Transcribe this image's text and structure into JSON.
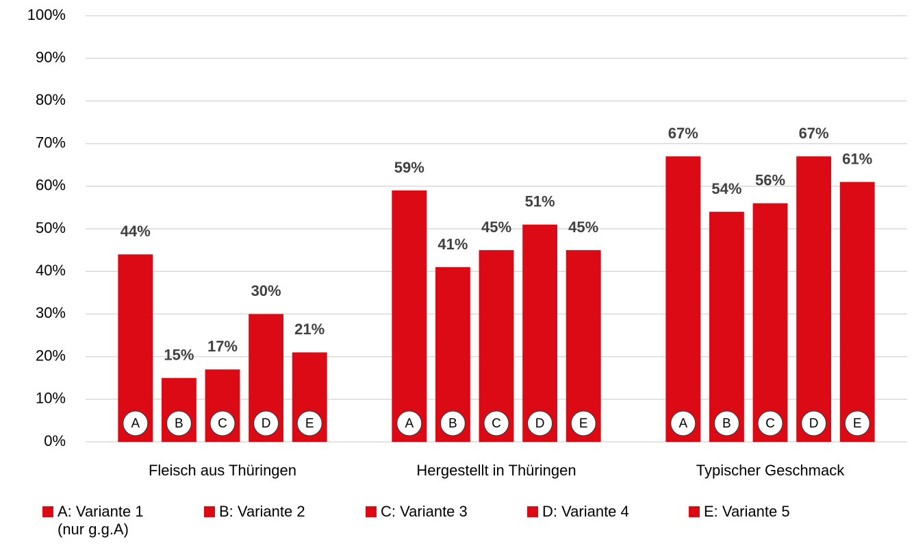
{
  "chart_data": {
    "type": "bar",
    "categories": [
      "Fleisch aus Thüringen",
      "Hergestellt in Thüringen",
      "Typischer Geschmack"
    ],
    "series": [
      {
        "name": "A: Variante 1 (nur g.g.A)",
        "letter": "A",
        "color": "#dc0a14",
        "values": [
          44,
          59,
          67
        ],
        "value_labels": [
          "44%",
          "59%",
          "67%"
        ]
      },
      {
        "name": "B: Variante 2",
        "letter": "B",
        "color": "#dc0a14",
        "values": [
          15,
          41,
          54
        ],
        "value_labels": [
          "15%",
          "41%",
          "54%"
        ]
      },
      {
        "name": "C: Variante 3",
        "letter": "C",
        "color": "#dc0a14",
        "values": [
          17,
          45,
          56
        ],
        "value_labels": [
          "17%",
          "45%",
          "56%"
        ]
      },
      {
        "name": "D: Variante 4",
        "letter": "D",
        "color": "#dc0a14",
        "values": [
          30,
          51,
          67
        ],
        "value_labels": [
          "30%",
          "51%",
          "67%"
        ]
      },
      {
        "name": "E: Variante 5",
        "letter": "E",
        "color": "#dc0a14",
        "values": [
          21,
          45,
          61
        ],
        "value_labels": [
          "21%",
          "45%",
          "61%"
        ]
      }
    ],
    "ylim": [
      0,
      100
    ],
    "yticks": [
      {
        "value": 0,
        "label": "0%"
      },
      {
        "value": 10,
        "label": "10%"
      },
      {
        "value": 20,
        "label": "20%"
      },
      {
        "value": 30,
        "label": "30%"
      },
      {
        "value": 40,
        "label": "40%"
      },
      {
        "value": 50,
        "label": "50%"
      },
      {
        "value": 60,
        "label": "60%"
      },
      {
        "value": 70,
        "label": "70%"
      },
      {
        "value": 80,
        "label": "80%"
      },
      {
        "value": 90,
        "label": "90%"
      },
      {
        "value": 100,
        "label": "100%"
      }
    ],
    "grid": true,
    "legend": "bottom"
  }
}
